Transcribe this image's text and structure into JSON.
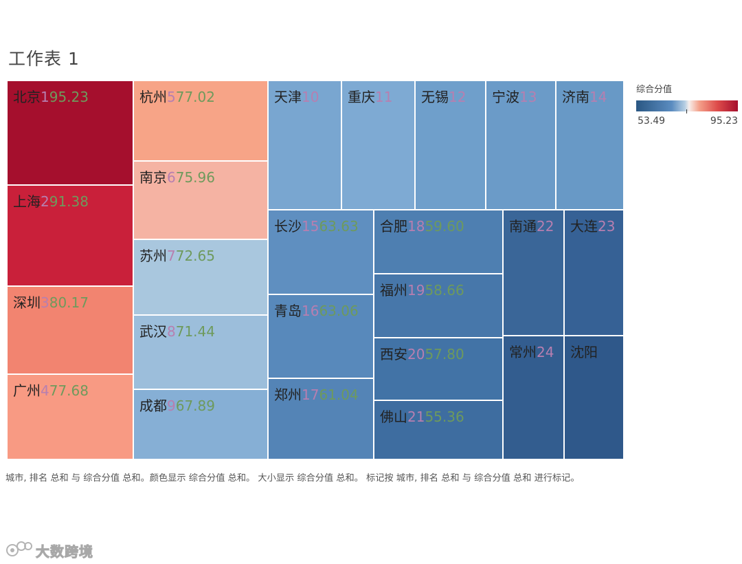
{
  "sheet_title": "工作表 1",
  "legend": {
    "title": "综合分值",
    "min_label": "53.49",
    "max_label": "95.23"
  },
  "caption": "城市, 排名 总和 与 综合分值 总和。颜色显示 综合分值 总和。 大小显示 综合分值 总和。 标记按 城市, 排名 总和 与 综合分值 总和 进行标记。",
  "watermark": {
    "text": "大数跨境",
    "icon": "chat-bubbles-icon"
  },
  "colors": {
    "cities": {
      "北京": "#a50f2d",
      "上海": "#c9203a",
      "深圳": "#f28470",
      "广州": "#f89a83",
      "杭州": "#f7a487",
      "南京": "#f5b3a3",
      "苏州": "#a9c7de",
      "武汉": "#9cbedb",
      "成都": "#86afd5",
      "天津": "#79a6d0",
      "重庆": "#7eaad3",
      "无锡": "#6f9fcb",
      "宁波": "#6b9bc8",
      "济南": "#6899c6",
      "长沙": "#5f8fc0",
      "青岛": "#5889bb",
      "郑州": "#5484b6",
      "合肥": "#4e7fb1",
      "福州": "#4777aa",
      "西安": "#4273a6",
      "佛山": "#3e6da0",
      "南通": "#3a6698",
      "大连": "#366195",
      "常州": "#335d8f",
      "沈阳": "#2f588a"
    }
  },
  "chart_data": {
    "type": "treemap",
    "title": "工作表 1",
    "size_measure": "综合分值 总和",
    "color_measure": "综合分值 总和",
    "color_range": [
      53.49,
      95.23
    ],
    "items": [
      {
        "city": "北京",
        "rank_text": "1",
        "score_text": "95.23"
      },
      {
        "city": "上海",
        "rank_text": "2",
        "score_text": "91.38"
      },
      {
        "city": "深圳",
        "rank_text": "3",
        "score_text": "80.17"
      },
      {
        "city": "广州",
        "rank_text": "4",
        "score_text": "77.68"
      },
      {
        "city": "杭州",
        "rank_text": "5",
        "score_text": "77.02"
      },
      {
        "city": "南京",
        "rank_text": "6",
        "score_text": "75.96"
      },
      {
        "city": "苏州",
        "rank_text": "7",
        "score_text": "72.65"
      },
      {
        "city": "武汉",
        "rank_text": "8",
        "score_text": "71.44"
      },
      {
        "city": "成都",
        "rank_text": "9",
        "score_text": "67.89"
      },
      {
        "city": "天津",
        "rank_text": "10",
        "score_text": ""
      },
      {
        "city": "重庆",
        "rank_text": "11",
        "score_text": ""
      },
      {
        "city": "无锡",
        "rank_text": "12",
        "score_text": ""
      },
      {
        "city": "宁波",
        "rank_text": "13",
        "score_text": ""
      },
      {
        "city": "济南",
        "rank_text": "14",
        "score_text": ""
      },
      {
        "city": "长沙",
        "rank_text": "15",
        "score_text": "63.63"
      },
      {
        "city": "青岛",
        "rank_text": "16",
        "score_text": "63.06"
      },
      {
        "city": "郑州",
        "rank_text": "17",
        "score_text": "61.04"
      },
      {
        "city": "合肥",
        "rank_text": "18",
        "score_text": "59.60"
      },
      {
        "city": "福州",
        "rank_text": "19",
        "score_text": "58.66"
      },
      {
        "city": "西安",
        "rank_text": "20",
        "score_text": "57.80"
      },
      {
        "city": "佛山",
        "rank_text": "21",
        "score_text": "55.36"
      },
      {
        "city": "南通",
        "rank_text": "22",
        "score_text": ""
      },
      {
        "city": "大连",
        "rank_text": "23",
        "score_text": ""
      },
      {
        "city": "常州",
        "rank_text": "24",
        "score_text": ""
      },
      {
        "city": "沈阳",
        "rank_text": "",
        "score_text": ""
      }
    ]
  }
}
